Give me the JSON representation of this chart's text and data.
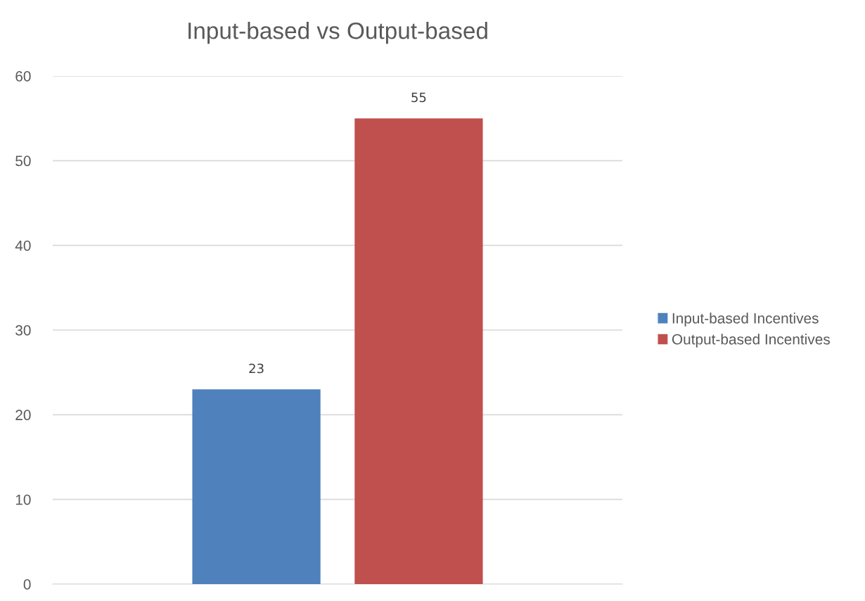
{
  "chart_data": {
    "type": "bar",
    "title": "Input-based vs Output-based",
    "categories": [
      null
    ],
    "series": [
      {
        "name": "Input-based Incentives",
        "color": "#4f81bd",
        "values": [
          23
        ]
      },
      {
        "name": "Output-based Incentives",
        "color": "#c0504d",
        "values": [
          55
        ]
      }
    ],
    "ylim": [
      0,
      60
    ],
    "yticks": [
      0,
      10,
      20,
      30,
      40,
      50,
      60
    ],
    "grid": "y",
    "legend": "right",
    "data_labels": true
  }
}
